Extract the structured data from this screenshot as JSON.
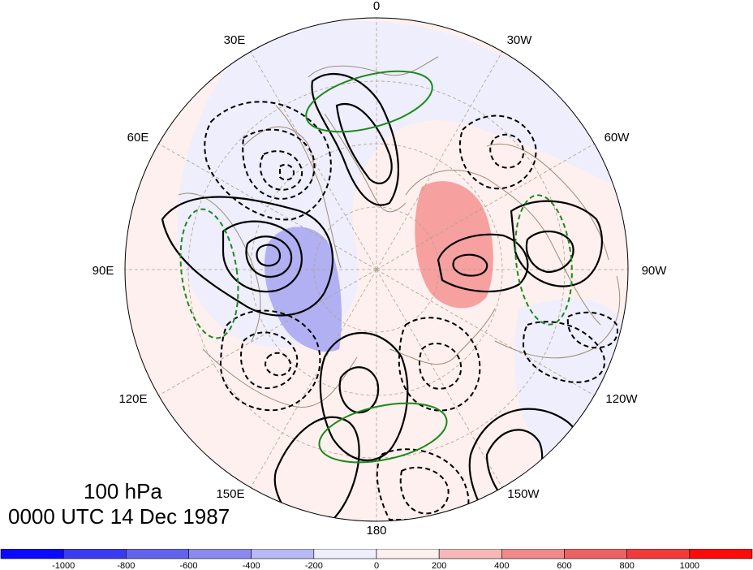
{
  "map": {
    "projection": "north-polar-stereographic",
    "level_label": "100 hPa",
    "datetime_label": "0000 UTC 14 Dec 1987",
    "longitude_labels": [
      "0",
      "30W",
      "60W",
      "90W",
      "120W",
      "150W",
      "180",
      "150E",
      "120E",
      "90E",
      "60E",
      "30E"
    ],
    "colors": {
      "coastline": "#a08c78",
      "graticule": "#b4a08c",
      "contour_black": "#000000",
      "contour_green": "#1a8a1a",
      "shade_positive_light": "#fdf0ee",
      "shade_negative_light": "#eeeefc",
      "shade_positive_strong": "#f6a0a0",
      "shade_negative_strong": "#b0b0f2"
    }
  },
  "colorbar": {
    "tick_labels": [
      "-1000",
      "-800",
      "-600",
      "-400",
      "-200",
      "0",
      "200",
      "400",
      "600",
      "800",
      "1000"
    ],
    "bin_colors": [
      "#0a0aff",
      "#3a3af2",
      "#6262ec",
      "#8a8aee",
      "#b8b8f4",
      "#eeeefc",
      "#fdf0ee",
      "#f6b8b8",
      "#f08a8a",
      "#ec6262",
      "#f23a3a",
      "#ff0a0a"
    ]
  }
}
